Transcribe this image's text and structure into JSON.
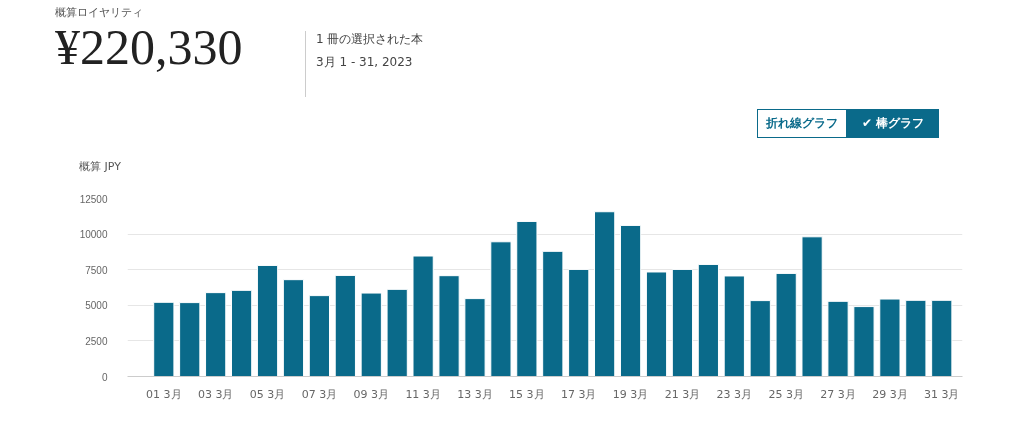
{
  "chart_data": {
    "type": "bar",
    "title": "¥220,330",
    "annotations": [
      "概算ロイヤリティ",
      "1 冊の選択された本",
      "3月 1 - 31, 2023",
      "折れ線グラフ",
      "✔ 棒グラフ"
    ],
    "ylabel": "概算 JPY",
    "categories": [
      "01 3月",
      null,
      "03 3月",
      null,
      "05 3月",
      null,
      "07 3月",
      null,
      "09 3月",
      null,
      "11 3月",
      null,
      "13 3月",
      null,
      "15 3月",
      null,
      "17 3月",
      null,
      "19 3月",
      null,
      "21 3月",
      null,
      "23 3月",
      null,
      "25 3月",
      null,
      "27 3月",
      null,
      "29 3月",
      null,
      "31 3月"
    ],
    "values": [
      5210,
      5190,
      5890,
      6050,
      7800,
      6800,
      5680,
      7100,
      5860,
      6120,
      8460,
      7080,
      5470,
      9460,
      10890,
      8790,
      7520,
      11570,
      10610,
      7340,
      7520,
      7870,
      7060,
      5330,
      7240,
      9810,
      5280,
      4910,
      5440,
      5350,
      5350
    ],
    "color": "#0a6a8a",
    "ylim": [
      0,
      12500
    ],
    "yticks": [
      0,
      2500,
      5000,
      7500,
      10000,
      12500
    ],
    "grid": "y"
  }
}
